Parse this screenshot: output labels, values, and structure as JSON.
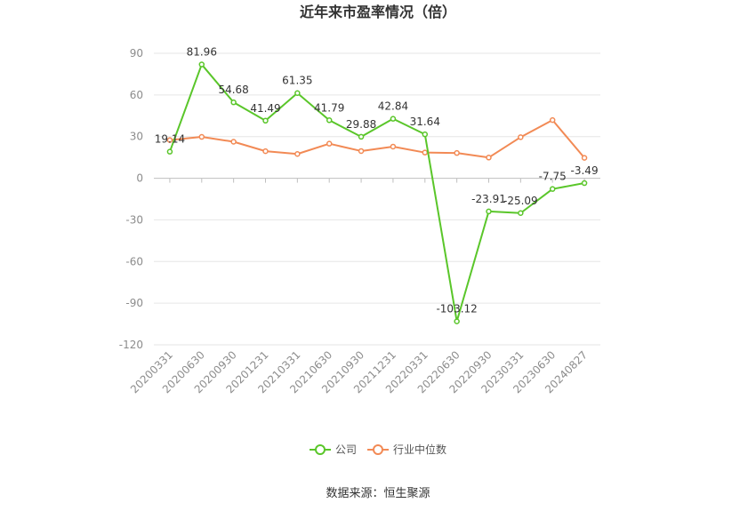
{
  "chart_data": {
    "type": "line",
    "title": "近年来市盈率情况（倍）",
    "categories": [
      "20200331",
      "20200630",
      "20200930",
      "20201231",
      "20210331",
      "20210630",
      "20210930",
      "20211231",
      "20220331",
      "20220630",
      "20220930",
      "20230331",
      "20230630",
      "20240827"
    ],
    "series": [
      {
        "name": "公司",
        "color": "#5ac62a",
        "values": [
          19.14,
          81.96,
          54.68,
          41.49,
          61.35,
          41.79,
          29.88,
          42.84,
          31.64,
          -103.12,
          -23.91,
          -25.09,
          -7.75,
          -3.49
        ],
        "labels": [
          "19.14",
          "81.96",
          "54.68",
          "41.49",
          "61.35",
          "41.79",
          "29.88",
          "42.84",
          "31.64",
          "-103.12",
          "-23.91",
          "-25.09",
          "-7.75",
          "-3.49"
        ]
      },
      {
        "name": "行业中位数",
        "color": "#f28a55",
        "values": [
          27.5,
          29.8,
          26.3,
          19.5,
          17.5,
          24.9,
          19.6,
          22.8,
          18.5,
          18.2,
          14.9,
          29.6,
          41.9,
          14.7
        ]
      }
    ],
    "ylim": [
      -120,
      90
    ],
    "yticks": [
      90,
      60,
      30,
      0,
      -30,
      -60,
      -90,
      -120
    ],
    "grid": true,
    "legend": "bottom-center",
    "source": "数据来源：恒生聚源"
  }
}
